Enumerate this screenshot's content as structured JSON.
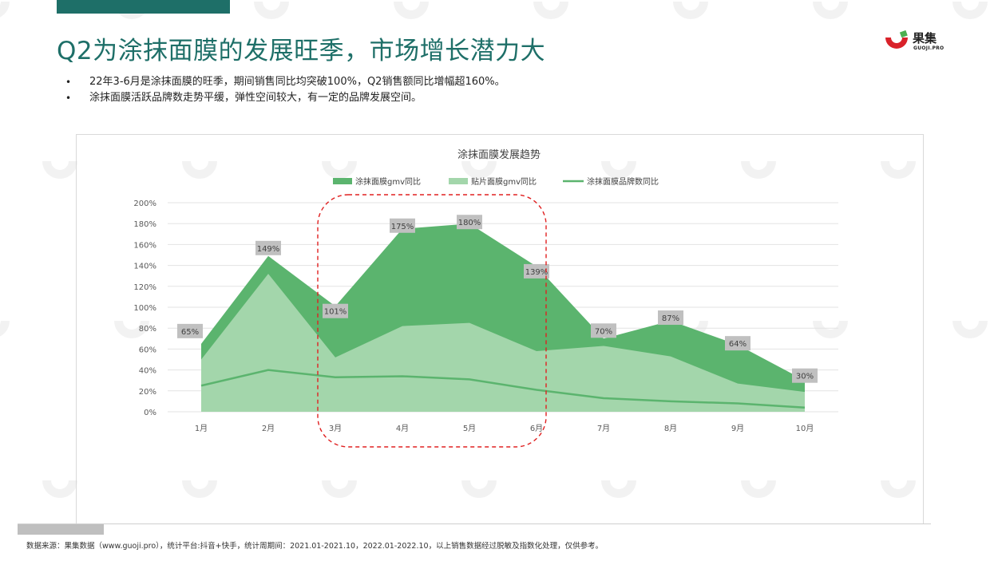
{
  "slide": {
    "title": "Q2为涂抹面膜的发展旺季，市场增长潜力大",
    "bullets": [
      "22年3-6月是涂抹面膜的旺季，期间销售同比均突破100%，Q2销售额同比增幅超160%。",
      "涂抹面膜活跃品牌数走势平缓，弹性空间较大，有一定的品牌发展空间。"
    ],
    "source": "数据来源：果集数据（www.guoji.pro），统计平台:抖音+快手，统计周期间：2021.01-2021.10，2022.01-2022.10，以上销售数据经过脱敏及指数化处理，仅供参考。"
  },
  "logo": {
    "name": "果集",
    "sub": "GUOJI.PRO",
    "accent_color": "#d9222a",
    "mark_color": "#4caf50"
  },
  "colors": {
    "theme": "#1e6f68",
    "series1": "#5bb46e",
    "series2": "#a3d6ab",
    "series3": "#5bb46e",
    "highlight": "#e02020",
    "label_bg": "#c0c0c0"
  },
  "chart_data": {
    "type": "area",
    "title": "涂抹面膜发展趋势",
    "categories": [
      "1月",
      "2月",
      "3月",
      "4月",
      "5月",
      "6月",
      "7月",
      "8月",
      "9月",
      "10月"
    ],
    "series": [
      {
        "name": "涂抹面膜gmv同比",
        "type": "area",
        "values": [
          0.65,
          1.49,
          1.01,
          1.75,
          1.8,
          1.39,
          0.7,
          0.87,
          0.64,
          0.3
        ]
      },
      {
        "name": "贴片面膜gmv同比",
        "type": "area",
        "values": [
          0.5,
          1.32,
          0.52,
          0.82,
          0.85,
          0.58,
          0.63,
          0.53,
          0.27,
          0.19
        ]
      },
      {
        "name": "涂抹面膜品牌数同比",
        "type": "line",
        "values": [
          0.25,
          0.4,
          0.33,
          0.34,
          0.31,
          0.21,
          0.13,
          0.1,
          0.08,
          0.04
        ]
      }
    ],
    "data_labels": [
      "65%",
      "149%",
      "101%",
      "175%",
      "180%",
      "139%",
      "70%",
      "87%",
      "64%",
      "30%"
    ],
    "y_ticks": [
      "0%",
      "20%",
      "40%",
      "60%",
      "80%",
      "100%",
      "120%",
      "140%",
      "160%",
      "180%",
      "200%"
    ],
    "ylim": [
      0,
      2.0
    ],
    "grid": true,
    "legend_position": "top",
    "highlight_range": [
      "3月",
      "6月"
    ]
  }
}
